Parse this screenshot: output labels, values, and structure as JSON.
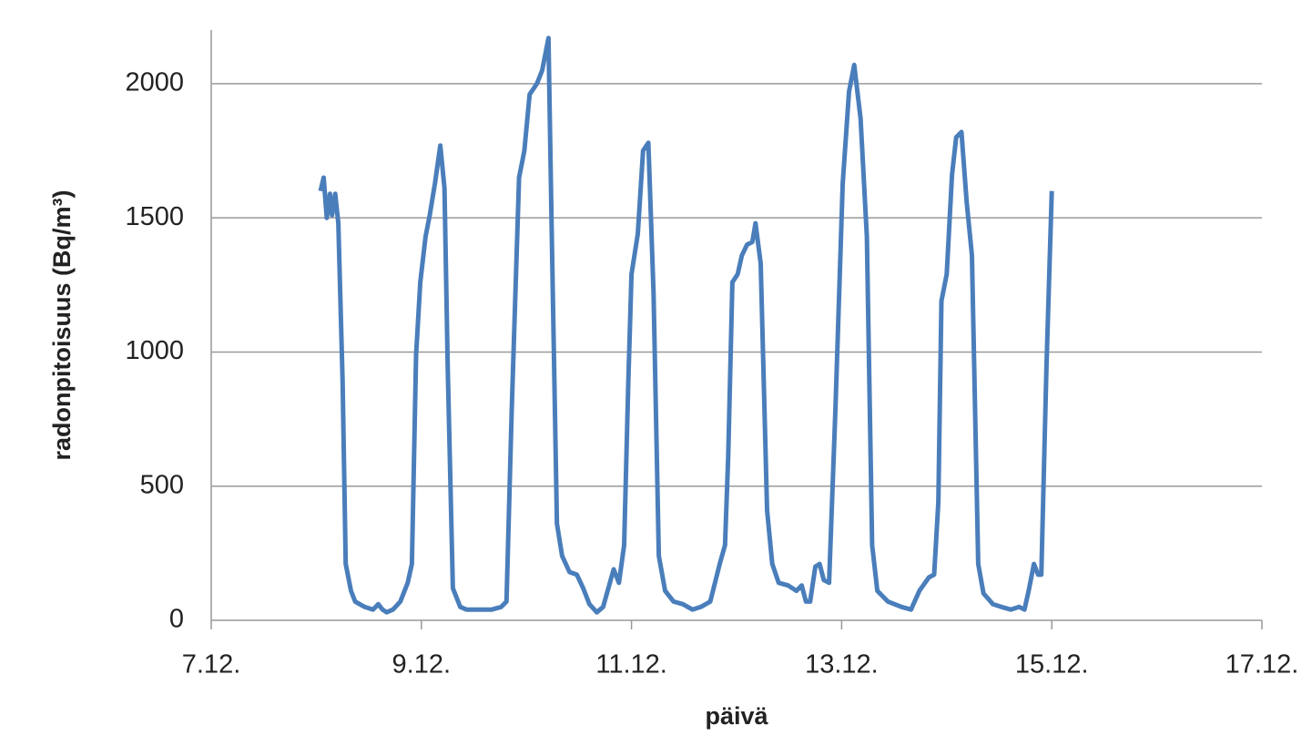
{
  "chart_data": {
    "type": "line",
    "x_label": "päivä",
    "y_label": "radonpitoisuus (Bq/m³)",
    "color": "#4a7ebb",
    "grid": true,
    "xlim": [
      7,
      17
    ],
    "xticks": [
      {
        "value": 7,
        "label": "7.12."
      },
      {
        "value": 9,
        "label": "9.12."
      },
      {
        "value": 11,
        "label": "11.12."
      },
      {
        "value": 13,
        "label": "13.12."
      },
      {
        "value": 15,
        "label": "15.12."
      },
      {
        "value": 17,
        "label": "17.12."
      }
    ],
    "ylim": [
      0,
      2200
    ],
    "yticks": [
      0,
      500,
      1000,
      1500,
      2000
    ],
    "x": [
      8.04,
      8.07,
      8.1,
      8.13,
      8.15,
      8.18,
      8.21,
      8.25,
      8.28,
      8.33,
      8.37,
      8.46,
      8.54,
      8.59,
      8.63,
      8.67,
      8.73,
      8.8,
      8.87,
      8.91,
      8.95,
      8.99,
      9.04,
      9.08,
      9.13,
      9.18,
      9.22,
      9.25,
      9.3,
      9.37,
      9.43,
      9.5,
      9.58,
      9.67,
      9.76,
      9.81,
      9.86,
      9.93,
      9.98,
      10.03,
      10.1,
      10.15,
      10.21,
      10.24,
      10.29,
      10.34,
      10.41,
      10.48,
      10.54,
      10.6,
      10.67,
      10.73,
      10.78,
      10.83,
      10.88,
      10.93,
      10.97,
      11.0,
      11.06,
      11.11,
      11.16,
      11.21,
      11.26,
      11.32,
      11.4,
      11.49,
      11.58,
      11.66,
      11.75,
      11.84,
      11.89,
      11.92,
      11.96,
      12.01,
      12.05,
      12.1,
      12.15,
      12.18,
      12.23,
      12.29,
      12.34,
      12.4,
      12.49,
      12.57,
      12.62,
      12.66,
      12.7,
      12.75,
      12.79,
      12.83,
      12.88,
      12.94,
      13.01,
      13.07,
      13.12,
      13.18,
      13.24,
      13.29,
      13.34,
      13.44,
      13.57,
      13.66,
      13.74,
      13.83,
      13.88,
      13.92,
      13.95,
      14.0,
      14.05,
      14.09,
      14.14,
      14.19,
      14.24,
      14.3,
      14.35,
      14.44,
      14.52,
      14.61,
      14.69,
      14.74,
      14.78,
      14.83,
      14.87,
      14.9,
      14.95,
      15.0
    ],
    "values": [
      1600,
      1650,
      1500,
      1590,
      1510,
      1590,
      1480,
      890,
      210,
      110,
      70,
      50,
      40,
      60,
      40,
      30,
      40,
      70,
      140,
      210,
      990,
      1260,
      1430,
      1510,
      1630,
      1770,
      1610,
      950,
      120,
      50,
      40,
      40,
      40,
      40,
      50,
      70,
      780,
      1650,
      1750,
      1960,
      2000,
      2050,
      2170,
      1460,
      360,
      240,
      180,
      170,
      120,
      60,
      30,
      50,
      120,
      190,
      140,
      280,
      890,
      1290,
      1440,
      1750,
      1780,
      1220,
      240,
      110,
      70,
      60,
      40,
      50,
      70,
      210,
      280,
      610,
      1260,
      1290,
      1360,
      1400,
      1410,
      1480,
      1330,
      410,
      210,
      140,
      130,
      110,
      130,
      70,
      70,
      200,
      210,
      150,
      140,
      780,
      1630,
      1970,
      2070,
      1870,
      1430,
      280,
      110,
      70,
      50,
      40,
      110,
      160,
      170,
      440,
      1190,
      1290,
      1660,
      1800,
      1820,
      1560,
      1360,
      210,
      100,
      60,
      50,
      40,
      50,
      40,
      110,
      210,
      170,
      170,
      950,
      1600
    ]
  }
}
